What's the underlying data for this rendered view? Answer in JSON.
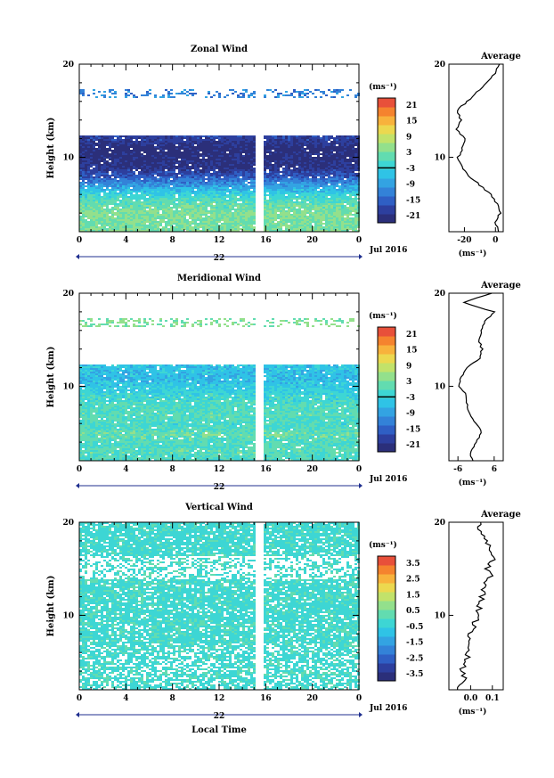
{
  "colors": {
    "background": "#ffffff",
    "axis": "#000000",
    "colormap": [
      "#2b2f7a",
      "#2d3f9e",
      "#2f5fc4",
      "#3382d8",
      "#33a3e2",
      "#2fc3e6",
      "#3dd6d4",
      "#62dcb0",
      "#93e08c",
      "#c2e26a",
      "#ecd84f",
      "#f8b23c",
      "#f5832e",
      "#e8503a"
    ]
  },
  "xaxis": {
    "label": "Local Time",
    "ticks": [
      "0",
      "4",
      "8",
      "12",
      "16",
      "20",
      "0"
    ],
    "day": "22",
    "month": "Jul 2016"
  },
  "colorbar_unit": "(ms⁻¹)",
  "average_title": "Average",
  "average_unit": "(ms⁻¹)",
  "panels": [
    {
      "title": "Zonal Wind",
      "ylabel": "Height (km)",
      "yticks": [
        "20",
        "10"
      ],
      "colorbar_ticks": [
        "21",
        "15",
        "9",
        "3",
        "-3",
        "-9",
        "-15",
        "-21"
      ],
      "avg_xticks": [
        "-20",
        "0"
      ]
    },
    {
      "title": "Meridional Wind",
      "ylabel": "Height (km)",
      "yticks": [
        "20",
        "10"
      ],
      "colorbar_ticks": [
        "21",
        "15",
        "9",
        "3",
        "-3",
        "-9",
        "-15",
        "-21"
      ],
      "avg_xticks": [
        "-6",
        "6"
      ]
    },
    {
      "title": "Vertical Wind",
      "ylabel": "Height (km)",
      "yticks": [
        "20",
        "10"
      ],
      "colorbar_ticks": [
        "3.5",
        "2.5",
        "1.5",
        "0.5",
        "-0.5",
        "-1.5",
        "-2.5",
        "-3.5"
      ],
      "avg_xticks": [
        "0.0",
        "0.1"
      ]
    }
  ],
  "chart_data": [
    {
      "type": "heatmap",
      "title": "Zonal Wind",
      "xlabel": "",
      "ylabel": "Height (km)",
      "x_range_hours": [
        0,
        24
      ],
      "ylim": [
        2,
        20
      ],
      "color_range": [
        -24,
        24
      ],
      "data_gap_hour": 15.3,
      "height_profile": {
        "heights": [
          2,
          3,
          4,
          5,
          6,
          7,
          8,
          9,
          10,
          11,
          12,
          13,
          14,
          15,
          16,
          17,
          18,
          19,
          20
        ],
        "values": [
          4,
          3,
          4,
          2,
          -2,
          -9,
          -16,
          -21,
          -22,
          -23,
          -19,
          null,
          null,
          null,
          null,
          -12,
          null,
          null,
          null
        ]
      },
      "average_profile": {
        "heights": [
          2,
          3,
          4,
          5,
          6,
          7,
          8,
          9,
          10,
          11,
          12,
          13,
          14,
          15,
          16,
          17,
          18,
          19,
          20
        ],
        "values": [
          2,
          0,
          3,
          1,
          -3,
          -10,
          -17,
          -22,
          -24,
          -21,
          -20,
          -25,
          -22,
          -25,
          -18,
          -12,
          -6,
          0,
          2
        ],
        "xlim": [
          -30,
          5
        ]
      }
    },
    {
      "type": "heatmap",
      "title": "Meridional Wind",
      "xlabel": "",
      "ylabel": "Height (km)",
      "x_range_hours": [
        0,
        24
      ],
      "ylim": [
        2,
        20
      ],
      "color_range": [
        -24,
        24
      ],
      "data_gap_hour": 15.3,
      "height_profile": {
        "heights": [
          2,
          3,
          4,
          5,
          6,
          7,
          8,
          9,
          10,
          11,
          12,
          13,
          14,
          15,
          16,
          17,
          18,
          19,
          20
        ],
        "values": [
          -1,
          1,
          0,
          2,
          -1,
          1,
          0,
          -2,
          -4,
          -6,
          -5,
          null,
          null,
          null,
          null,
          4,
          null,
          null,
          null
        ]
      },
      "average_profile": {
        "heights": [
          2,
          3,
          4,
          5,
          6,
          7,
          8,
          9,
          10,
          11,
          12,
          13,
          14,
          15,
          16,
          17,
          18,
          19,
          20
        ],
        "values": [
          -1,
          -2,
          0,
          2,
          0,
          -2,
          -3,
          -3,
          -6,
          -5,
          -3,
          1,
          2,
          1,
          2,
          3,
          6,
          -4,
          5
        ],
        "xlim": [
          -9,
          9
        ]
      }
    },
    {
      "type": "heatmap",
      "title": "Vertical Wind",
      "xlabel": "Local Time",
      "ylabel": "Height (km)",
      "x_range_hours": [
        0,
        24
      ],
      "ylim": [
        2,
        20
      ],
      "color_range": [
        -4,
        4
      ],
      "data_gap_hour": 15.3,
      "height_profile": {
        "heights": [
          2,
          3,
          4,
          5,
          6,
          7,
          8,
          9,
          10,
          11,
          12,
          13,
          14,
          15,
          16,
          17,
          18,
          19,
          20
        ],
        "values": [
          -0.2,
          -0.2,
          -0.1,
          -0.2,
          -0.2,
          -0.1,
          -0.2,
          -0.1,
          -0.2,
          -0.2,
          -0.1,
          -0.2,
          -0.1,
          -0.2,
          -0.1,
          -0.2,
          -0.2,
          -0.2,
          -0.2
        ]
      },
      "average_profile": {
        "heights": [
          2,
          3,
          4,
          5,
          6,
          7,
          8,
          9,
          10,
          11,
          12,
          13,
          14,
          15,
          16,
          17,
          18,
          19,
          20
        ],
        "values": [
          -0.06,
          -0.03,
          -0.04,
          -0.02,
          -0.01,
          -0.02,
          -0.01,
          0.02,
          0.03,
          0.04,
          0.05,
          0.06,
          0.09,
          0.08,
          0.1,
          0.09,
          0.07,
          0.05,
          0.04
        ],
        "xlim": [
          -0.1,
          0.15
        ]
      }
    }
  ]
}
